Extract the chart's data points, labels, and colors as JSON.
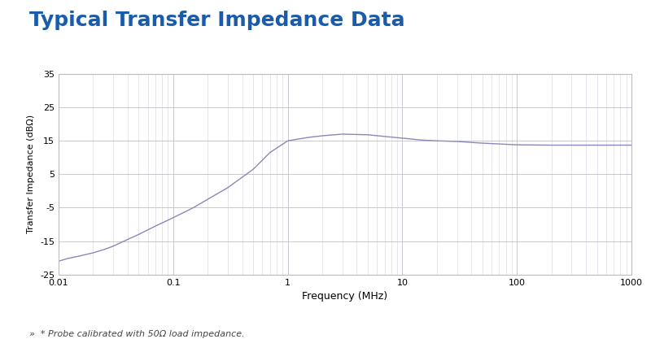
{
  "title": "Typical Transfer Impedance Data",
  "title_color": "#1a5caa",
  "xlabel": "Frequency (MHz)",
  "ylabel": "Transfer Impedance (dBΩ)",
  "xlim": [
    0.01,
    1000
  ],
  "ylim": [
    -25,
    35
  ],
  "yticks": [
    -25,
    -15,
    -5,
    5,
    15,
    25,
    35
  ],
  "line_color": "#8888bb",
  "background_color": "#ffffff",
  "grid_major_color": "#c8c8d0",
  "grid_minor_color": "#dcdce4",
  "footnote": "»  * Probe calibrated with 50Ω load impedance.",
  "curve_x": [
    0.01,
    0.012,
    0.015,
    0.02,
    0.025,
    0.03,
    0.04,
    0.05,
    0.07,
    0.1,
    0.15,
    0.2,
    0.3,
    0.5,
    0.7,
    1.0,
    1.5,
    2.0,
    3.0,
    5.0,
    7.0,
    10.0,
    15.0,
    20.0,
    30.0,
    50.0,
    100.0,
    200.0,
    500.0,
    1000.0
  ],
  "curve_y": [
    -21,
    -20.2,
    -19.5,
    -18.5,
    -17.5,
    -16.5,
    -14.5,
    -13.0,
    -10.5,
    -8.0,
    -5.0,
    -2.5,
    1.0,
    6.5,
    11.5,
    15.0,
    16.0,
    16.5,
    17.0,
    16.8,
    16.3,
    15.8,
    15.2,
    15.0,
    14.8,
    14.3,
    13.8,
    13.7,
    13.7,
    13.7
  ],
  "title_fontsize": 18,
  "axis_fontsize": 8,
  "xlabel_fontsize": 9,
  "footnote_fontsize": 8
}
